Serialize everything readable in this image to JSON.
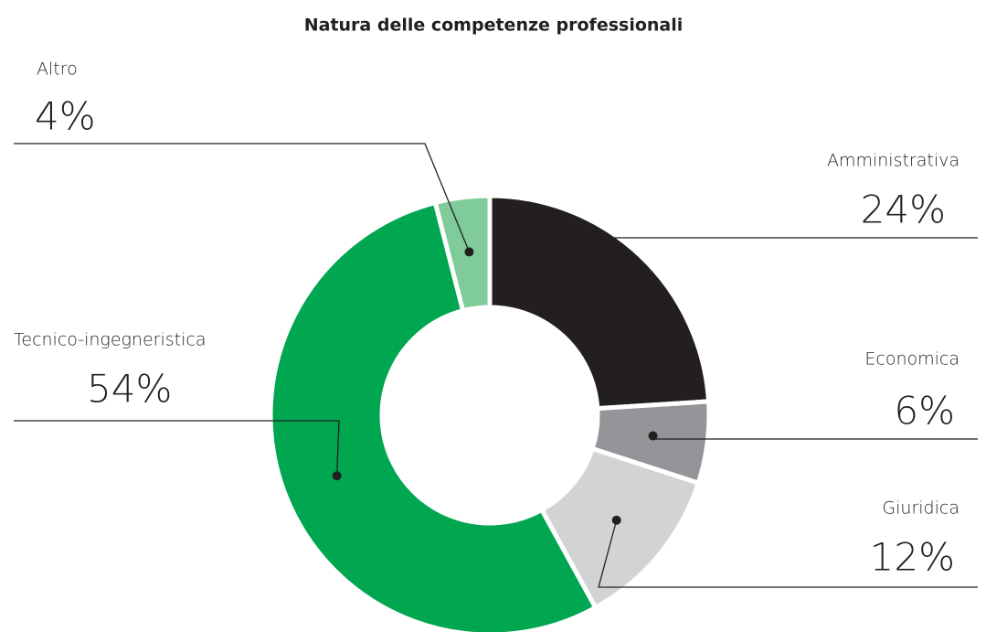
{
  "chart_data": {
    "type": "donut",
    "title": "Natura delle competenze professionali",
    "categories": [
      "Amministrativa",
      "Economica",
      "Giuridica",
      "Tecnico-ingegneristica",
      "Altro"
    ],
    "values": [
      24,
      6,
      12,
      54,
      4
    ],
    "value_labels": [
      "24%",
      "6%",
      "12%",
      "54%",
      "4%"
    ],
    "colors": [
      "#231f20",
      "#939598",
      "#d1d3d4",
      "#00a650",
      "#7fcc9a"
    ]
  }
}
